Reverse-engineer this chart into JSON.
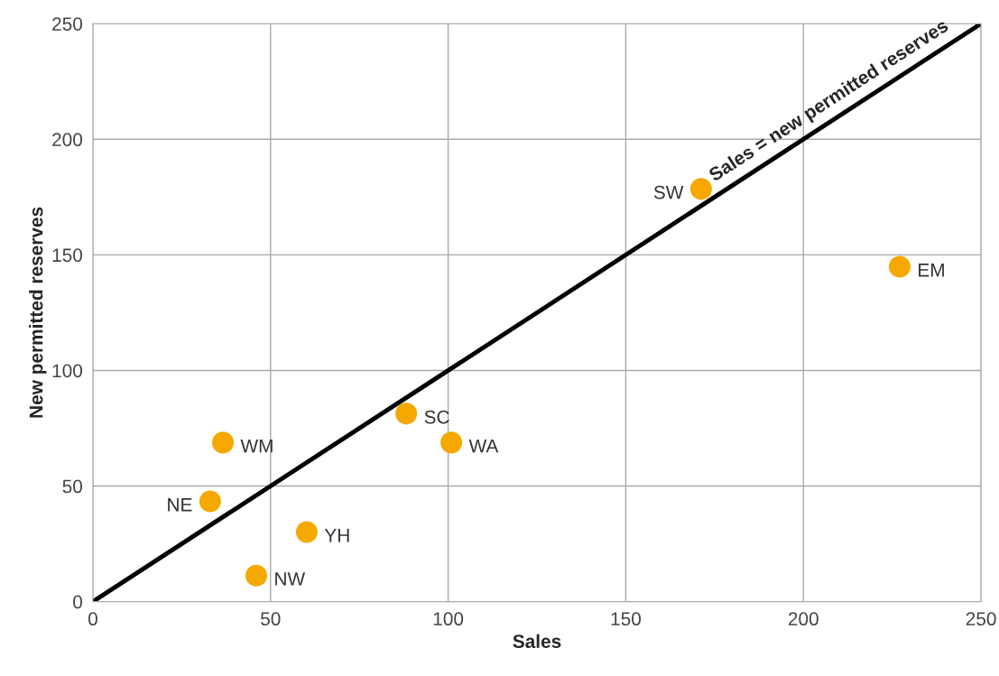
{
  "chart_data": {
    "type": "scatter",
    "xlabel": "Sales",
    "ylabel": "New permitted reserves",
    "xlim": [
      0,
      250
    ],
    "ylim": [
      0,
      250
    ],
    "xticks": [
      0,
      50,
      100,
      150,
      200,
      250
    ],
    "yticks": [
      0,
      50,
      100,
      150,
      200,
      250
    ],
    "grid": true,
    "legend": false,
    "series": [
      {
        "marker": "circle",
        "color": "#f5a800",
        "x": [
          171.2,
          227.1,
          88.2,
          100.9,
          36.6,
          33.0,
          60.2,
          46.0
        ],
        "values": [
          178.5,
          144.9,
          81.3,
          68.8,
          68.8,
          43.4,
          30.1,
          11.3
        ],
        "value_labels": [
          "SW",
          "EM",
          "SC",
          "WA",
          "WM",
          "NE",
          "YH",
          "NW"
        ]
      },
      {
        "type": "line",
        "color": "#000000",
        "x": [
          0,
          250
        ],
        "values": [
          0,
          250
        ],
        "line_style": "solid"
      }
    ],
    "annotations": [
      "Sales = new permitted reserves"
    ]
  }
}
